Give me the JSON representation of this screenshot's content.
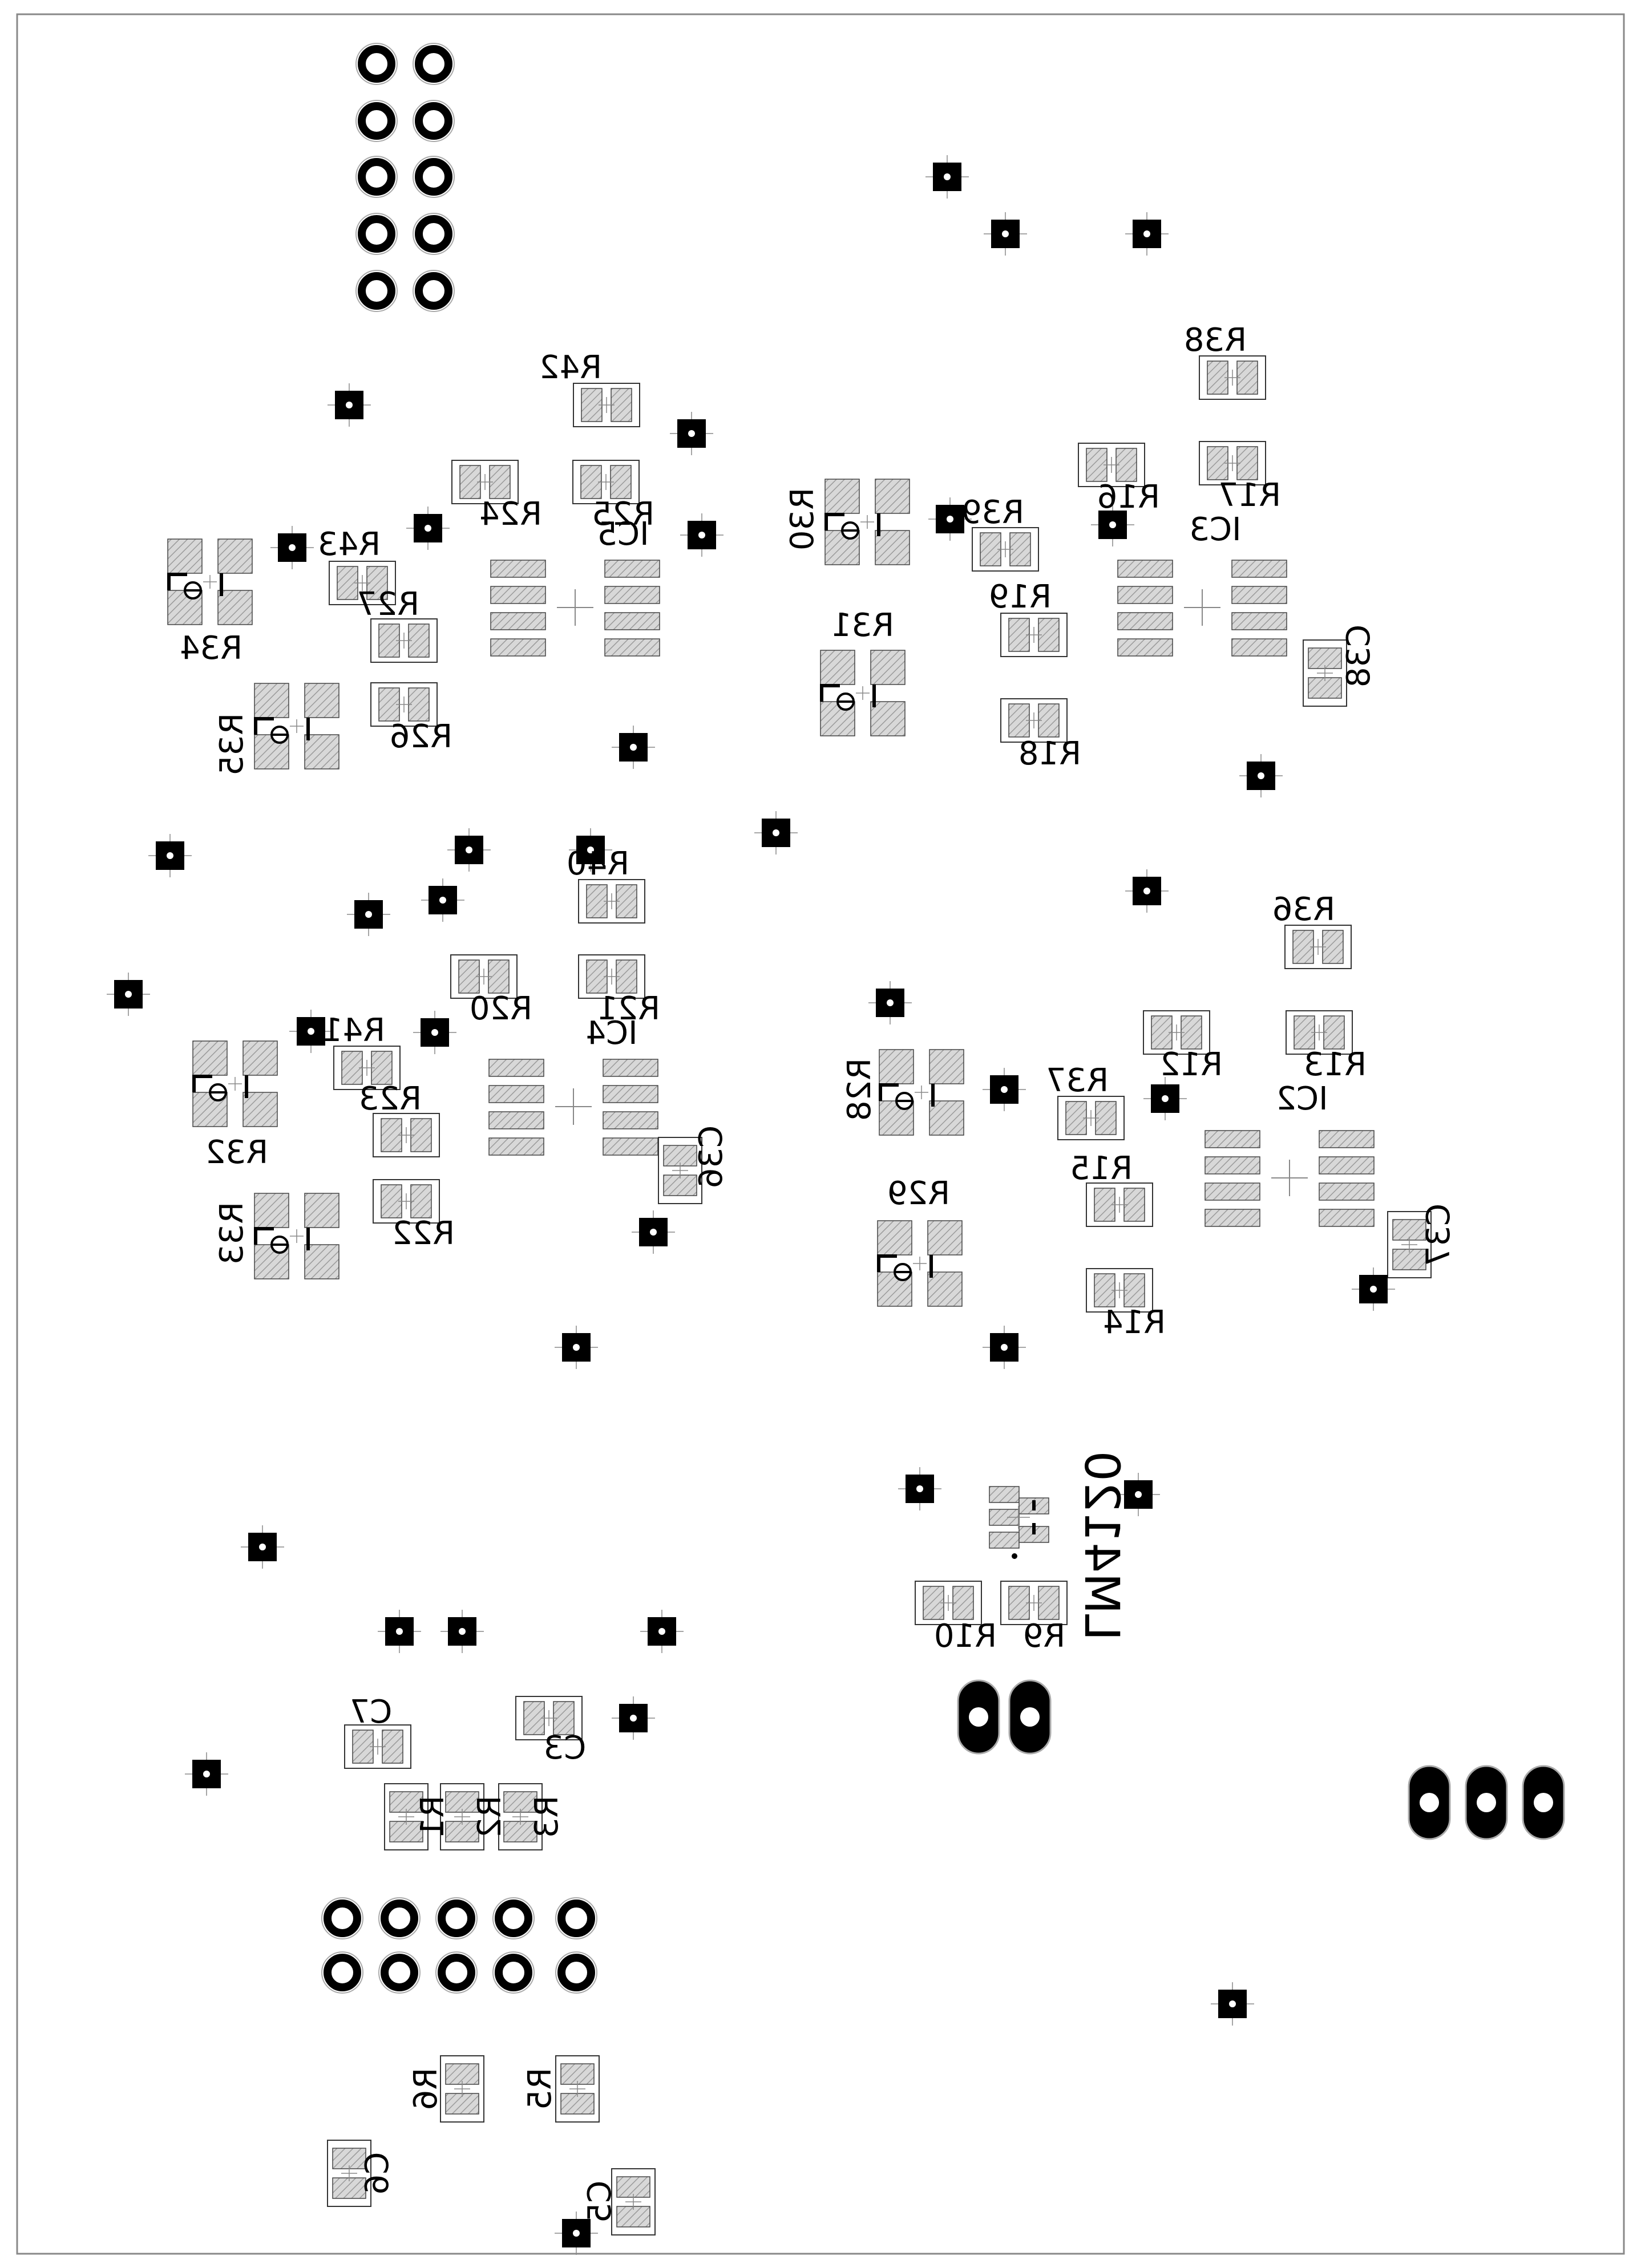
{
  "colors": {
    "background": "#ffffff",
    "board_outline": "#888888",
    "pad_fill": "#d8d8d8",
    "pad_hatch": "#9a9a9a",
    "pad_stroke": "#444444",
    "via_fill": "#000000",
    "silk": "#000000"
  },
  "labels": {
    "R42": "R42",
    "R24": "R24",
    "R25": "R25",
    "IC5": "IC5",
    "R43": "R43",
    "R27": "R27",
    "R34": "R34",
    "R26": "R26",
    "R35": "R35",
    "R30": "R30",
    "R39": "R39",
    "R16": "R16",
    "R17": "R17",
    "IC3": "IC3",
    "R38": "R38",
    "R19": "R19",
    "R31": "R31",
    "R18": "R18",
    "C38": "C38",
    "R40": "R40",
    "R20": "R20",
    "R21": "R21",
    "IC4": "IC4",
    "R41": "R41",
    "R23": "R23",
    "R32": "R32",
    "R33": "R33",
    "R22": "R22",
    "C36": "C36",
    "R36": "R36",
    "R12": "R12",
    "R13": "R13",
    "IC2": "IC2",
    "R28": "R28",
    "R37": "R37",
    "R15": "R15",
    "R29": "R29",
    "R14": "R14",
    "C37": "C37",
    "LM4120": "LM4120",
    "R9": "R9",
    "R10": "R10",
    "C7": "C7",
    "C3": "C3",
    "R1": "R1",
    "R2": "R2",
    "R3": "R3",
    "R6": "R6",
    "R5": "R5",
    "C6": "C6",
    "C5": "C5"
  },
  "icons": {
    "via": "via-icon",
    "through_hole_pad": "through-hole-pad-icon",
    "oval_pad": "oval-pad-icon",
    "smd_pad": "smd-pad-icon"
  }
}
